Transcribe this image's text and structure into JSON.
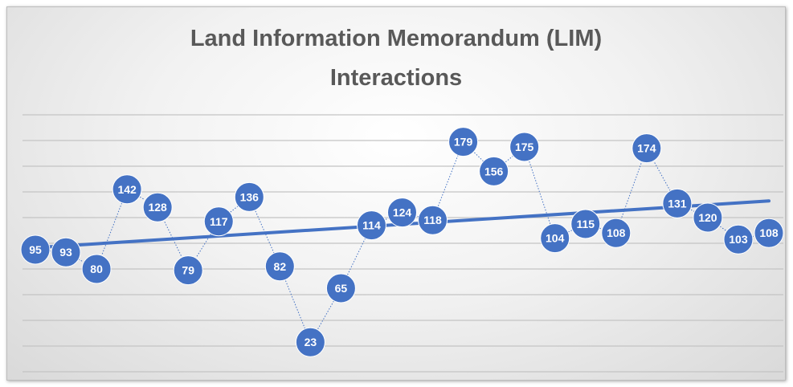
{
  "chart_data": {
    "type": "line",
    "title": "Land Information Memorandum (LIM) Interactions",
    "categories": [
      null,
      null,
      null,
      null,
      null,
      null,
      null,
      null,
      null,
      null,
      null,
      null,
      null,
      null,
      null,
      null,
      null,
      null,
      null,
      null,
      null,
      null,
      null,
      null,
      null
    ],
    "values": [
      95,
      93,
      80,
      142,
      128,
      79,
      117,
      136,
      82,
      23,
      65,
      114,
      124,
      118,
      179,
      156,
      175,
      104,
      115,
      108,
      174,
      131,
      120,
      103,
      108
    ],
    "color": "#4472c4",
    "ylim": [
      0,
      200
    ],
    "yticks": [
      0,
      20,
      40,
      60,
      80,
      100,
      120,
      140,
      160,
      180,
      200
    ],
    "grid": true,
    "trendline": "linear"
  }
}
